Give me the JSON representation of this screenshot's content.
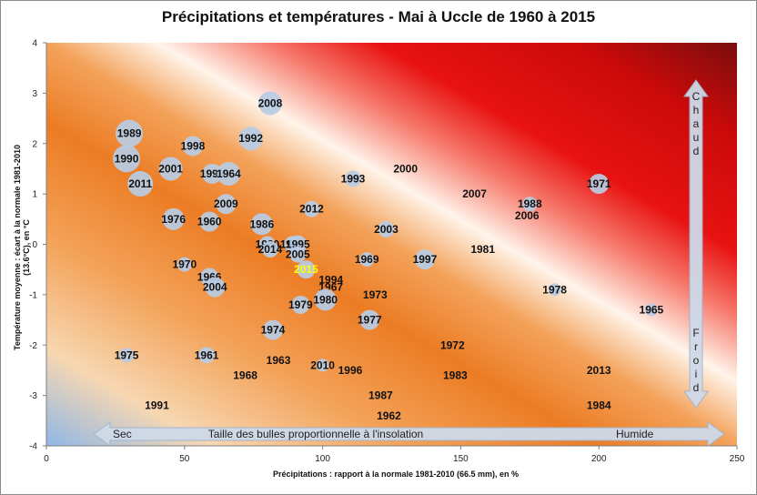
{
  "chart_data": {
    "type": "scatter",
    "title": "Précipitations et températures - Mai à Uccle de 1960 à 2015",
    "xlabel": "Précipitations : rapport à la normale  1981-2010 (66.5 mm), en %",
    "ylabel": "Température moyenne : écart à  la normale 1981-2010 (13.6°C), en °C",
    "xlim": [
      0,
      250
    ],
    "ylim": [
      -4,
      4
    ],
    "x_ticks": [
      "0",
      "50",
      "100",
      "150",
      "200",
      "250"
    ],
    "y_ticks": [
      "4",
      "3",
      "2",
      "1",
      "0",
      "-1",
      "-2",
      "-3",
      "-4"
    ],
    "x_tick_values": [
      0,
      50,
      100,
      150,
      200,
      250
    ],
    "y_tick_values": [
      4,
      3,
      2,
      1,
      0,
      -1,
      -2,
      -3,
      -4
    ],
    "grid": false,
    "bubble_size_note": "Taille des bulles proportionnelle  à l'insolation",
    "left_label": "Sec",
    "right_label": "Humide",
    "hot_label": "Chaud",
    "cold_label": "Froid",
    "highlight_color": "#ffff00",
    "bubble_color": "#b8cce4",
    "points": [
      {
        "label": "1989",
        "x": 30,
        "y": 2.2,
        "size": 15
      },
      {
        "label": "1990",
        "x": 29,
        "y": 1.7,
        "size": 15
      },
      {
        "label": "2011",
        "x": 34,
        "y": 1.2,
        "size": 14
      },
      {
        "label": "2001",
        "x": 45,
        "y": 1.5,
        "size": 13
      },
      {
        "label": "1998",
        "x": 53,
        "y": 1.95,
        "size": 11
      },
      {
        "label": "1992",
        "x": 74,
        "y": 2.1,
        "size": 13
      },
      {
        "label": "2008",
        "x": 81,
        "y": 2.8,
        "size": 13
      },
      {
        "label": "1999",
        "x": 60,
        "y": 1.4,
        "size": 11
      },
      {
        "label": "1964",
        "x": 66,
        "y": 1.4,
        "size": 13
      },
      {
        "label": "2009",
        "x": 65,
        "y": 0.8,
        "size": 11
      },
      {
        "label": "1976",
        "x": 46,
        "y": 0.5,
        "size": 12
      },
      {
        "label": "1960",
        "x": 59,
        "y": 0.45,
        "size": 11
      },
      {
        "label": "1986",
        "x": 78,
        "y": 0.4,
        "size": 12
      },
      {
        "label": "2012",
        "x": 96,
        "y": 0.7,
        "size": 9
      },
      {
        "label": "1993",
        "x": 111,
        "y": 1.3,
        "size": 9
      },
      {
        "label": "2000",
        "x": 130,
        "y": 1.5,
        "size": 0
      },
      {
        "label": "2003",
        "x": 123,
        "y": 0.3,
        "size": 9
      },
      {
        "label": "1980",
        "x": 80,
        "y": 0.0,
        "size": 9
      },
      {
        "label": "1985",
        "x": 89,
        "y": 0.0,
        "size": 9
      },
      {
        "label": "1995",
        "x": 91,
        "y": 0.0,
        "size": 10
      },
      {
        "label": "2014",
        "x": 81,
        "y": -0.1,
        "size": 9
      },
      {
        "label": "2005",
        "x": 91,
        "y": -0.2,
        "size": 9
      },
      {
        "label": "2015",
        "x": 94,
        "y": -0.5,
        "size": 10,
        "highlight": true
      },
      {
        "label": "1994",
        "x": 103,
        "y": -0.7,
        "size": 0
      },
      {
        "label": "1967",
        "x": 103,
        "y": -0.85,
        "size": 0
      },
      {
        "label": "1969",
        "x": 116,
        "y": -0.3,
        "size": 8
      },
      {
        "label": "1997",
        "x": 137,
        "y": -0.3,
        "size": 11
      },
      {
        "label": "1981",
        "x": 158,
        "y": -0.1,
        "size": 0
      },
      {
        "label": "1970",
        "x": 50,
        "y": -0.4,
        "size": 8
      },
      {
        "label": "1966",
        "x": 59,
        "y": -0.65,
        "size": 10
      },
      {
        "label": "2004",
        "x": 61,
        "y": -0.85,
        "size": 11
      },
      {
        "label": "1979",
        "x": 92,
        "y": -1.2,
        "size": 10
      },
      {
        "label": "1980",
        "x": 101,
        "y": -1.1,
        "size": 12
      },
      {
        "label": "1973",
        "x": 119,
        "y": -1.0,
        "size": 0
      },
      {
        "label": "1977",
        "x": 117,
        "y": -1.5,
        "size": 11
      },
      {
        "label": "1974",
        "x": 82,
        "y": -1.7,
        "size": 11
      },
      {
        "label": "1972",
        "x": 147,
        "y": -2.0,
        "size": 0
      },
      {
        "label": "2007",
        "x": 155,
        "y": 1.0,
        "size": 0
      },
      {
        "label": "1988",
        "x": 175,
        "y": 0.8,
        "size": 8
      },
      {
        "label": "2006",
        "x": 174,
        "y": 0.57,
        "size": 0
      },
      {
        "label": "1971",
        "x": 200,
        "y": 1.2,
        "size": 11
      },
      {
        "label": "1978",
        "x": 184,
        "y": -0.9,
        "size": 7
      },
      {
        "label": "1965",
        "x": 219,
        "y": -1.3,
        "size": 7
      },
      {
        "label": "2013",
        "x": 200,
        "y": -2.5,
        "size": 0
      },
      {
        "label": "1984",
        "x": 200,
        "y": -3.2,
        "size": 0
      },
      {
        "label": "1975",
        "x": 29,
        "y": -2.2,
        "size": 8
      },
      {
        "label": "1961",
        "x": 58,
        "y": -2.2,
        "size": 9
      },
      {
        "label": "1968",
        "x": 72,
        "y": -2.6,
        "size": 0
      },
      {
        "label": "1963",
        "x": 84,
        "y": -2.3,
        "size": 0
      },
      {
        "label": "2010",
        "x": 100,
        "y": -2.4,
        "size": 7
      },
      {
        "label": "1996",
        "x": 110,
        "y": -2.5,
        "size": 0
      },
      {
        "label": "1983",
        "x": 148,
        "y": -2.6,
        "size": 0
      },
      {
        "label": "1987",
        "x": 121,
        "y": -3.0,
        "size": 0
      },
      {
        "label": "1962",
        "x": 124,
        "y": -3.4,
        "size": 0
      },
      {
        "label": "1991",
        "x": 40,
        "y": -3.2,
        "size": 0
      }
    ]
  }
}
